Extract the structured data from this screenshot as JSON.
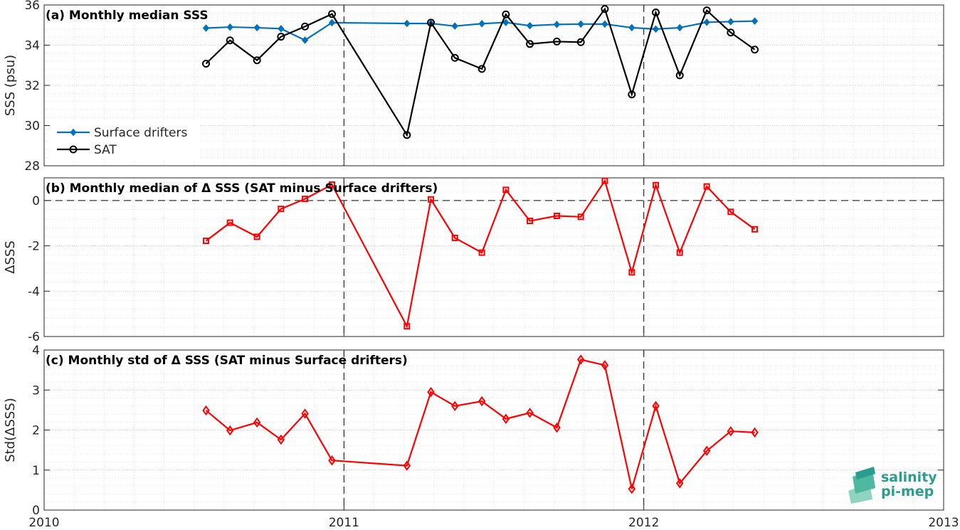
{
  "chart_data": [
    {
      "type": "line",
      "title": "(a) Monthly median SSS",
      "ylabel": "SSS (psu)",
      "xlim": [
        2010,
        2013
      ],
      "ylim": [
        28,
        36
      ],
      "yticks": [
        28,
        30,
        32,
        34,
        36
      ],
      "xticks": [
        2010,
        2011,
        2012,
        2013
      ],
      "grid": true,
      "legend_position": "lower-left",
      "x": [
        2010.54,
        2010.62,
        2010.71,
        2010.79,
        2010.87,
        2010.96,
        2011.21,
        2011.29,
        2011.37,
        2011.46,
        2011.54,
        2011.62,
        2011.71,
        2011.79,
        2011.87,
        2011.96,
        2012.04,
        2012.12,
        2012.21,
        2012.29,
        2012.37
      ],
      "series": [
        {
          "name": "Surface drifters",
          "color": "#0072bd",
          "marker": "filled-diamond",
          "values": [
            34.85,
            34.9,
            34.87,
            34.82,
            34.25,
            35.12,
            35.08,
            35.08,
            34.95,
            35.07,
            35.13,
            34.97,
            35.03,
            35.05,
            35.05,
            34.87,
            34.8,
            34.87,
            35.14,
            35.17,
            35.2
          ]
        },
        {
          "name": "SAT",
          "color": "#000000",
          "marker": "open-circle",
          "values": [
            33.08,
            34.24,
            33.25,
            34.42,
            34.93,
            35.55,
            29.53,
            35.12,
            33.37,
            32.82,
            35.53,
            34.06,
            34.18,
            34.15,
            35.8,
            31.55,
            35.63,
            32.5,
            35.73,
            34.63,
            33.78
          ]
        }
      ],
      "vlines": [
        2011,
        2012
      ]
    },
    {
      "type": "line",
      "title": "(b) Monthly median of Δ SSS (SAT minus Surface drifters)",
      "ylabel": "ΔSSS",
      "xlim": [
        2010,
        2013
      ],
      "ylim": [
        -6,
        1
      ],
      "yticks": [
        -6,
        -4,
        -2,
        0
      ],
      "xticks": [
        2010,
        2011,
        2012,
        2013
      ],
      "grid": true,
      "hline": 0,
      "vlines": [
        2011,
        2012
      ],
      "x": [
        2010.54,
        2010.62,
        2010.71,
        2010.79,
        2010.87,
        2010.96,
        2011.21,
        2011.29,
        2011.37,
        2011.46,
        2011.54,
        2011.62,
        2011.71,
        2011.79,
        2011.87,
        2011.96,
        2012.04,
        2012.12,
        2012.21,
        2012.29,
        2012.37
      ],
      "series": [
        {
          "color": "#ff0000",
          "marker": "open-square",
          "values": [
            -1.78,
            -0.98,
            -1.6,
            -0.37,
            0.07,
            0.7,
            -5.55,
            0.05,
            -1.65,
            -2.3,
            0.47,
            -0.9,
            -0.68,
            -0.72,
            0.87,
            -3.17,
            0.68,
            -2.3,
            0.62,
            -0.5,
            -1.27
          ]
        }
      ]
    },
    {
      "type": "line",
      "title": "(c) Monthly std of Δ SSS (SAT minus Surface drifters)",
      "ylabel": "Std(ΔSSS)",
      "xlim": [
        2010,
        2013
      ],
      "ylim": [
        0,
        4
      ],
      "yticks": [
        0,
        1,
        2,
        3,
        4
      ],
      "xticks": [
        2010,
        2011,
        2012,
        2013
      ],
      "grid": true,
      "vlines": [
        2011,
        2012
      ],
      "x": [
        2010.54,
        2010.62,
        2010.71,
        2010.79,
        2010.87,
        2010.96,
        2011.21,
        2011.29,
        2011.37,
        2011.46,
        2011.54,
        2011.62,
        2011.71,
        2011.79,
        2011.87,
        2011.96,
        2012.04,
        2012.12,
        2012.21,
        2012.29,
        2012.37
      ],
      "series": [
        {
          "color": "#ff0000",
          "marker": "open-diamond",
          "values": [
            2.49,
            1.99,
            2.19,
            1.76,
            2.41,
            1.24,
            1.11,
            2.95,
            2.6,
            2.72,
            2.28,
            2.43,
            2.06,
            3.76,
            3.62,
            0.53,
            2.6,
            0.67,
            1.48,
            1.97,
            1.94
          ]
        }
      ]
    }
  ],
  "logo": {
    "line1": "salinity",
    "line2": "pi-mep",
    "color": "#2a9d8f"
  }
}
